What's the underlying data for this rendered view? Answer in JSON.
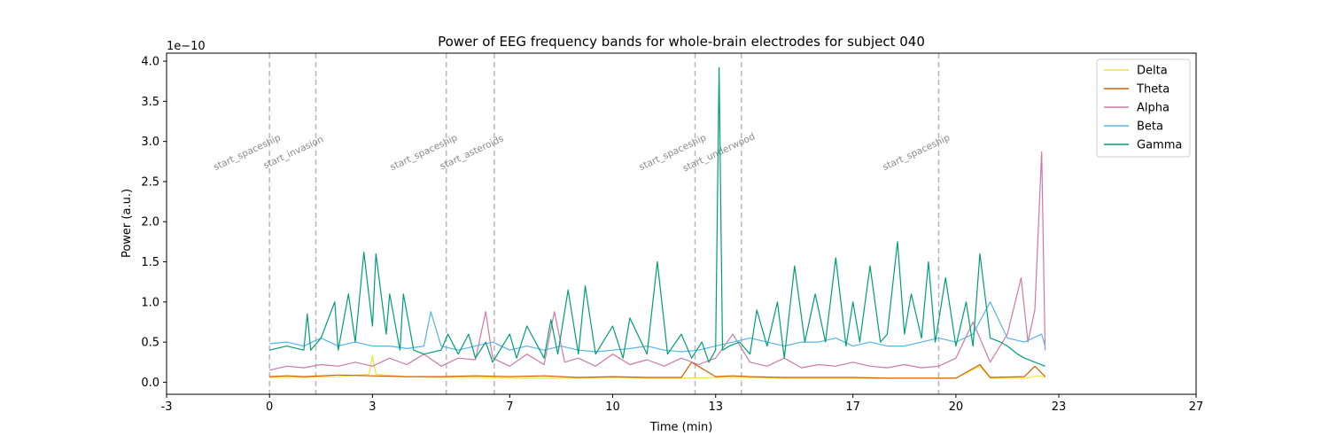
{
  "chart_data": {
    "type": "line",
    "title": "Power of EEG frequency bands for whole-brain electrodes for subject 040",
    "xlabel": "Time (min)",
    "ylabel": "Power (a.u.)",
    "y_offset_label": "1e−10",
    "xlim": [
      -3,
      27
    ],
    "ylim": [
      -0.15,
      4.1
    ],
    "x_ticks": [
      -3,
      0,
      3,
      7,
      10,
      13,
      17,
      20,
      23,
      27
    ],
    "x_tick_labels": [
      "-3",
      "0",
      "3",
      "7",
      "10",
      "13",
      "17",
      "20",
      "23",
      "27"
    ],
    "y_ticks": [
      0.0,
      0.5,
      1.0,
      1.5,
      2.0,
      2.5,
      3.0,
      3.5,
      4.0
    ],
    "y_tick_labels": [
      "0.0",
      "0.5",
      "1.0",
      "1.5",
      "2.0",
      "2.5",
      "3.0",
      "3.5",
      "4.0"
    ],
    "grid": false,
    "legend_position": "top-right",
    "events": [
      {
        "label": "start_spaceship",
        "x": 0.0
      },
      {
        "label": "start_invasion",
        "x": 1.35
      },
      {
        "label": "start_spaceship",
        "x": 5.15
      },
      {
        "label": "start_asteroids",
        "x": 6.55
      },
      {
        "label": "start_spaceship",
        "x": 12.4
      },
      {
        "label": "start_underwood",
        "x": 13.75
      },
      {
        "label": "start_spaceship",
        "x": 19.5
      }
    ],
    "series": [
      {
        "name": "Delta",
        "color": "#f0e442",
        "x": [
          0,
          1,
          2,
          2.9,
          3.0,
          3.1,
          4,
          5,
          6,
          7,
          8,
          9,
          10,
          11,
          12,
          13,
          13.5,
          14,
          15,
          16,
          17,
          18,
          19,
          20,
          20.7,
          21,
          22,
          22.4,
          22.6
        ],
        "values": [
          0.06,
          0.06,
          0.07,
          0.1,
          0.33,
          0.1,
          0.07,
          0.06,
          0.06,
          0.05,
          0.05,
          0.05,
          0.06,
          0.05,
          0.05,
          0.06,
          0.06,
          0.06,
          0.05,
          0.05,
          0.05,
          0.05,
          0.05,
          0.05,
          0.2,
          0.05,
          0.05,
          0.08,
          0.06
        ]
      },
      {
        "name": "Theta",
        "color": "#d55e00",
        "x": [
          0,
          0.5,
          1,
          2,
          3,
          4,
          5,
          6,
          7,
          8,
          9,
          10,
          11,
          12,
          12.3,
          13,
          13.5,
          14,
          15,
          16,
          17,
          18,
          19,
          20,
          20.7,
          21,
          22,
          22.3,
          22.6
        ],
        "values": [
          0.07,
          0.08,
          0.07,
          0.09,
          0.08,
          0.07,
          0.07,
          0.08,
          0.07,
          0.08,
          0.06,
          0.07,
          0.06,
          0.06,
          0.25,
          0.07,
          0.08,
          0.07,
          0.06,
          0.06,
          0.06,
          0.05,
          0.05,
          0.05,
          0.22,
          0.06,
          0.07,
          0.2,
          0.07
        ]
      },
      {
        "name": "Alpha",
        "color": "#cc79a7",
        "x": [
          0,
          0.5,
          1,
          1.5,
          2,
          2.5,
          3,
          3.5,
          4,
          4.5,
          5,
          5.5,
          6,
          6.3,
          6.5,
          7,
          7.5,
          8,
          8.3,
          8.6,
          9,
          9.5,
          10,
          10.5,
          11,
          11.5,
          12,
          12.5,
          13,
          13.5,
          14,
          14.5,
          15,
          15.5,
          16,
          16.5,
          17,
          17.5,
          18,
          18.5,
          19,
          19.5,
          20,
          20.5,
          21,
          21.5,
          21.9,
          22.1,
          22.3,
          22.5,
          22.6
        ],
        "values": [
          0.15,
          0.2,
          0.18,
          0.22,
          0.2,
          0.25,
          0.2,
          0.3,
          0.22,
          0.35,
          0.2,
          0.3,
          0.28,
          0.88,
          0.3,
          0.2,
          0.35,
          0.22,
          0.88,
          0.25,
          0.3,
          0.2,
          0.35,
          0.22,
          0.28,
          0.2,
          0.3,
          0.22,
          0.3,
          0.6,
          0.25,
          0.2,
          0.3,
          0.18,
          0.22,
          0.2,
          0.25,
          0.2,
          0.18,
          0.22,
          0.18,
          0.2,
          0.3,
          0.75,
          0.25,
          0.6,
          1.3,
          0.5,
          0.9,
          2.87,
          0.4
        ]
      },
      {
        "name": "Beta",
        "color": "#56b4e9",
        "x": [
          0,
          0.5,
          1,
          1.5,
          2,
          2.5,
          3,
          3.5,
          4,
          4.5,
          4.7,
          5,
          5.5,
          6,
          6.5,
          7,
          7.5,
          8,
          8.5,
          9,
          9.5,
          10,
          10.5,
          11,
          11.5,
          12,
          12.5,
          13,
          13.5,
          14,
          14.5,
          15,
          15.5,
          16,
          16.5,
          17,
          17.5,
          18,
          18.5,
          19,
          19.5,
          20,
          20.5,
          21,
          21.5,
          22,
          22.5,
          22.6
        ],
        "values": [
          0.48,
          0.5,
          0.45,
          0.55,
          0.45,
          0.5,
          0.45,
          0.45,
          0.42,
          0.45,
          0.88,
          0.45,
          0.4,
          0.45,
          0.5,
          0.4,
          0.45,
          0.4,
          0.45,
          0.4,
          0.38,
          0.4,
          0.42,
          0.45,
          0.4,
          0.38,
          0.4,
          0.45,
          0.5,
          0.55,
          0.5,
          0.45,
          0.5,
          0.5,
          0.55,
          0.45,
          0.5,
          0.45,
          0.45,
          0.5,
          0.55,
          0.5,
          0.6,
          1.0,
          0.55,
          0.5,
          0.6,
          0.45
        ]
      },
      {
        "name": "Gamma",
        "color": "#009e73",
        "x": [
          0,
          0.5,
          1,
          1.1,
          1.2,
          1.5,
          1.9,
          2,
          2.3,
          2.5,
          2.75,
          3,
          3.1,
          3.4,
          3.5,
          3.8,
          3.9,
          4.2,
          4.5,
          5,
          5.2,
          5.5,
          5.8,
          6,
          6.3,
          6.5,
          7,
          7.2,
          7.5,
          8,
          8.2,
          8.4,
          8.7,
          9,
          9.2,
          9.5,
          10,
          10.3,
          10.5,
          11,
          11.3,
          11.6,
          12,
          12.3,
          12.6,
          12.8,
          13,
          13.1,
          13.2,
          13.4,
          13.7,
          14,
          14.2,
          14.5,
          14.8,
          15,
          15.3,
          15.6,
          15.9,
          16.2,
          16.5,
          16.8,
          17,
          17.2,
          17.5,
          17.8,
          18,
          18.3,
          18.5,
          18.7,
          19,
          19.2,
          19.4,
          19.7,
          20,
          20.3,
          20.5,
          20.7,
          21,
          21.3,
          21.5,
          21.8,
          22,
          22.3,
          22.6
        ],
        "values": [
          0.4,
          0.45,
          0.4,
          0.85,
          0.4,
          0.55,
          1.0,
          0.4,
          1.1,
          0.5,
          1.62,
          0.7,
          1.6,
          0.6,
          1.1,
          0.4,
          1.1,
          0.4,
          0.35,
          0.4,
          0.6,
          0.35,
          0.6,
          0.3,
          0.5,
          0.25,
          0.6,
          0.3,
          0.7,
          0.3,
          0.78,
          0.35,
          1.15,
          0.35,
          1.2,
          0.35,
          0.7,
          0.3,
          0.8,
          0.35,
          1.5,
          0.35,
          0.6,
          0.3,
          0.5,
          0.25,
          0.4,
          3.92,
          0.4,
          0.45,
          0.5,
          0.35,
          0.9,
          0.45,
          1.0,
          0.3,
          1.45,
          0.5,
          1.1,
          0.5,
          1.55,
          0.45,
          1.0,
          0.5,
          1.45,
          0.5,
          0.6,
          1.75,
          0.6,
          1.1,
          0.55,
          1.5,
          0.5,
          1.3,
          0.45,
          1.0,
          0.45,
          1.6,
          0.55,
          0.5,
          0.45,
          0.35,
          0.3,
          0.25,
          0.2
        ]
      }
    ]
  }
}
